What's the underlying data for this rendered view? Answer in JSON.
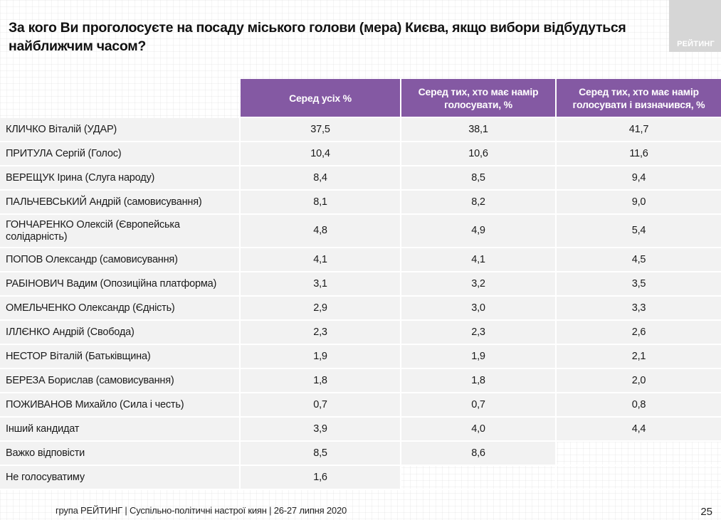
{
  "title": "За кого Ви проголосуєте на посаду міського голови (мера) Києва, якщо вибори відбудуться найближчим часом?",
  "logo": {
    "text": "РЕЙТИНГ",
    "icon": "rating-logo",
    "color": "#d6d6d6"
  },
  "colors": {
    "header_bg": "#8459a3",
    "row_bg": "#f2f2f2"
  },
  "table": {
    "headers": [
      "",
      "Серед усіх %",
      "Серед тих, хто має намір голосувати, %",
      "Серед тих, хто має намір голосувати і визначився, %"
    ],
    "rows": [
      {
        "label": "КЛИЧКО Віталій (УДАР)",
        "all": "37,5",
        "intend": "38,1",
        "decided": "41,7"
      },
      {
        "label": "ПРИТУЛА Сергій (Голос)",
        "all": "10,4",
        "intend": "10,6",
        "decided": "11,6"
      },
      {
        "label": "ВЕРЕЩУК Ірина (Слуга народу)",
        "all": "8,4",
        "intend": "8,5",
        "decided": "9,4"
      },
      {
        "label": "ПАЛЬЧЕВСЬКИЙ Андрій (самовисування)",
        "all": "8,1",
        "intend": "8,2",
        "decided": "9,0"
      },
      {
        "label": "ГОНЧАРЕНКО Олексій (Європейська солідарність)",
        "all": "4,8",
        "intend": "4,9",
        "decided": "5,4"
      },
      {
        "label": "ПОПОВ Олександр (самовисування)",
        "all": "4,1",
        "intend": "4,1",
        "decided": "4,5"
      },
      {
        "label": "РАБІНОВИЧ Вадим (Опозиційна платформа)",
        "all": "3,1",
        "intend": "3,2",
        "decided": "3,5"
      },
      {
        "label": "ОМЕЛЬЧЕНКО Олександр (Єдність)",
        "all": "2,9",
        "intend": "3,0",
        "decided": "3,3"
      },
      {
        "label": "ІЛЛЄНКО Андрій (Свобода)",
        "all": "2,3",
        "intend": "2,3",
        "decided": "2,6"
      },
      {
        "label": "НЕСТОР Віталій (Батьківщина)",
        "all": "1,9",
        "intend": "1,9",
        "decided": "2,1"
      },
      {
        "label": "БЕРЕЗА Борислав (самовисування)",
        "all": "1,8",
        "intend": "1,8",
        "decided": "2,0"
      },
      {
        "label": "ПОЖИВАНОВ Михайло (Сила і честь)",
        "all": "0,7",
        "intend": "0,7",
        "decided": "0,8"
      },
      {
        "label": "Інший кандидат",
        "all": "3,9",
        "intend": "4,0",
        "decided": "4,4"
      },
      {
        "label": "Важко відповісти",
        "all": "8,5",
        "intend": "8,6",
        "decided": null
      },
      {
        "label": "Не голосуватиму",
        "all": "1,6",
        "intend": null,
        "decided": null
      }
    ]
  },
  "footer": {
    "source": "група РЕЙТИНГ  | Суспільно-політичні настрої киян | 26-27 липня 2020",
    "page_number": "25"
  }
}
